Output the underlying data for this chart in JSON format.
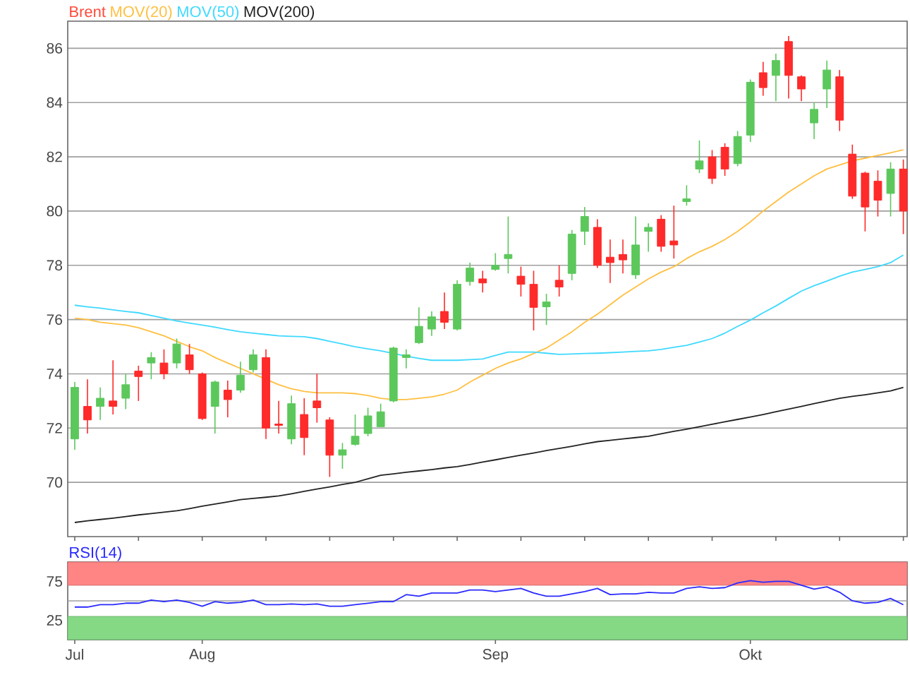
{
  "chart_data": [
    {
      "type": "candlestick",
      "grid": "y",
      "legend": "top left",
      "categories": [
        null,
        null,
        null,
        null,
        null,
        null,
        null,
        null,
        null,
        null,
        null,
        null,
        null,
        null,
        null,
        null,
        null,
        null,
        null,
        null,
        null,
        null,
        null,
        null,
        null,
        null,
        null,
        null,
        null,
        null,
        null,
        null,
        null,
        null,
        null,
        null,
        null,
        null,
        null,
        null,
        null,
        null,
        null,
        null,
        null,
        null,
        null,
        null,
        null,
        null,
        null,
        null,
        null,
        null,
        null,
        null,
        null,
        null,
        null,
        null,
        null,
        null,
        null,
        null,
        null,
        null
      ],
      "ylim": [
        68,
        87
      ],
      "yticks": [
        70,
        72,
        74,
        76,
        78,
        80,
        82,
        84,
        86
      ],
      "series": [
        {
          "name": "Brent",
          "type": "candlestick",
          "color": "#ff4a3a",
          "colors": [
            "#5cc85c",
            "#ff2a2a",
            "#5cc85c",
            "#ff2a2a",
            "#5cc85c",
            "#ff2a2a",
            "#5cc85c",
            "#ff2a2a",
            "#5cc85c",
            "#ff2a2a",
            "#ff2a2a",
            "#5cc85c",
            "#ff2a2a",
            "#5cc85c",
            "#5cc85c",
            "#ff2a2a",
            "#ff2a2a",
            "#5cc85c",
            "#ff2a2a",
            "#ff2a2a",
            "#ff2a2a",
            "#5cc85c",
            "#5cc85c",
            "#5cc85c",
            "#5cc85c",
            "#5cc85c",
            "#5cc85c",
            "#5cc85c",
            "#5cc85c",
            "#ff2a2a",
            "#5cc85c",
            "#5cc85c",
            "#ff2a2a",
            "#5cc85c",
            "#5cc85c",
            "#ff2a2a",
            "#ff2a2a",
            "#5cc85c",
            "#ff2a2a",
            "#5cc85c",
            "#5cc85c",
            "#ff2a2a",
            "#ff2a2a",
            "#ff2a2a",
            "#5cc85c",
            "#5cc85c",
            "#ff2a2a",
            "#ff2a2a",
            "#5cc85c",
            "#5cc85c",
            "#ff2a2a",
            "#ff2a2a",
            "#5cc85c",
            "#5cc85c",
            "#ff2a2a",
            "#5cc85c",
            "#ff2a2a",
            "#ff2a2a",
            "#5cc85c",
            "#5cc85c",
            "#ff2a2a",
            "#ff2a2a",
            "#ff2a2a",
            "#ff2a2a",
            "#5cc85c",
            "#ff2a2a"
          ],
          "ohlc": [
            [
              71.6,
              73.7,
              71.2,
              73.5
            ],
            [
              72.8,
              73.8,
              71.8,
              72.3
            ],
            [
              72.8,
              73.5,
              72.3,
              73.1
            ],
            [
              73.0,
              74.5,
              72.5,
              72.8
            ],
            [
              73.1,
              74.0,
              72.7,
              73.6
            ],
            [
              74.1,
              74.3,
              73.0,
              73.9
            ],
            [
              74.4,
              74.8,
              73.8,
              74.6
            ],
            [
              74.4,
              74.9,
              73.8,
              74.0
            ],
            [
              74.4,
              75.3,
              74.2,
              75.1
            ],
            [
              74.7,
              75.1,
              74.0,
              74.15
            ],
            [
              74.0,
              74.05,
              72.3,
              72.35
            ],
            [
              72.8,
              73.75,
              71.8,
              73.7
            ],
            [
              73.4,
              73.75,
              72.4,
              73.05
            ],
            [
              73.4,
              74.45,
              73.3,
              73.95
            ],
            [
              74.15,
              74.9,
              74.05,
              74.7
            ],
            [
              74.6,
              74.9,
              71.6,
              72.0
            ],
            [
              72.15,
              73.0,
              71.8,
              72.1
            ],
            [
              71.6,
              73.2,
              71.4,
              72.9
            ],
            [
              72.5,
              73.1,
              71.0,
              71.65
            ],
            [
              73.0,
              74.0,
              72.2,
              72.75
            ],
            [
              72.3,
              72.4,
              70.2,
              71.0
            ],
            [
              71.0,
              71.45,
              70.5,
              71.2
            ],
            [
              71.4,
              72.5,
              71.35,
              71.7
            ],
            [
              71.8,
              72.75,
              71.7,
              72.45
            ],
            [
              72.05,
              72.9,
              72.05,
              72.6
            ],
            [
              73.0,
              75.0,
              72.95,
              74.95
            ],
            [
              74.6,
              74.9,
              74.2,
              74.7
            ],
            [
              75.15,
              76.45,
              75.1,
              75.75
            ],
            [
              75.65,
              76.3,
              75.4,
              76.1
            ],
            [
              76.3,
              77.0,
              75.65,
              75.9
            ],
            [
              75.65,
              77.45,
              75.6,
              77.3
            ],
            [
              77.4,
              78.1,
              77.25,
              77.9
            ],
            [
              77.5,
              77.8,
              77.0,
              77.35
            ],
            [
              77.85,
              78.45,
              77.8,
              78.0
            ],
            [
              78.25,
              79.8,
              77.7,
              78.4
            ],
            [
              77.6,
              77.95,
              76.85,
              77.3
            ],
            [
              77.3,
              77.8,
              75.6,
              76.45
            ],
            [
              76.47,
              76.95,
              75.8,
              76.65
            ],
            [
              77.45,
              78.0,
              76.85,
              77.2
            ],
            [
              77.7,
              79.3,
              77.45,
              79.15
            ],
            [
              79.25,
              80.15,
              78.75,
              79.8
            ],
            [
              79.4,
              79.7,
              77.9,
              78.0
            ],
            [
              78.3,
              78.95,
              77.35,
              78.1
            ],
            [
              78.4,
              78.95,
              77.7,
              78.2
            ],
            [
              77.65,
              79.8,
              77.5,
              78.75
            ],
            [
              79.25,
              79.55,
              78.5,
              79.4
            ],
            [
              79.7,
              79.85,
              78.5,
              78.7
            ],
            [
              78.9,
              80.2,
              78.25,
              78.75
            ],
            [
              80.35,
              80.95,
              80.2,
              80.45
            ],
            [
              81.55,
              82.6,
              81.4,
              81.85
            ],
            [
              82.0,
              82.25,
              81.0,
              81.2
            ],
            [
              82.35,
              82.5,
              81.3,
              81.55
            ],
            [
              81.75,
              82.95,
              81.65,
              82.75
            ],
            [
              82.8,
              84.85,
              82.55,
              84.75
            ],
            [
              85.1,
              85.5,
              84.25,
              84.55
            ],
            [
              85.0,
              85.8,
              84.05,
              85.55
            ],
            [
              86.25,
              86.45,
              84.15,
              85.0
            ],
            [
              84.95,
              85.0,
              84.05,
              84.5
            ],
            [
              83.25,
              84.0,
              82.65,
              83.75
            ],
            [
              84.5,
              85.55,
              83.8,
              85.2
            ],
            [
              84.95,
              85.2,
              82.95,
              83.35
            ],
            [
              82.1,
              82.45,
              80.45,
              80.55
            ],
            [
              81.4,
              81.45,
              79.25,
              80.15
            ],
            [
              81.1,
              81.5,
              79.8,
              80.4
            ],
            [
              80.65,
              81.8,
              79.8,
              81.55
            ],
            [
              81.55,
              81.9,
              79.15,
              80.0
            ]
          ]
        },
        {
          "name": "MOV(20)",
          "type": "line",
          "color": "#ffbf40",
          "values": [
            76.05,
            76.0,
            75.9,
            75.85,
            75.8,
            75.7,
            75.55,
            75.4,
            75.2,
            75.0,
            74.85,
            74.6,
            74.4,
            74.2,
            74.0,
            73.8,
            73.6,
            73.45,
            73.35,
            73.3,
            73.3,
            73.3,
            73.27,
            73.2,
            73.1,
            73.05,
            73.05,
            73.1,
            73.15,
            73.25,
            73.4,
            73.7,
            73.95,
            74.2,
            74.4,
            74.55,
            74.75,
            74.95,
            75.25,
            75.55,
            75.9,
            76.2,
            76.55,
            76.9,
            77.2,
            77.5,
            77.75,
            77.95,
            78.25,
            78.5,
            78.7,
            78.95,
            79.25,
            79.6,
            80.0,
            80.35,
            80.7,
            81.0,
            81.3,
            81.55,
            81.7,
            81.85,
            81.95,
            82.05,
            82.15,
            82.26
          ]
        },
        {
          "name": "MOV(50)",
          "type": "line",
          "color": "#3fd9ff",
          "values": [
            76.53,
            76.47,
            76.42,
            76.36,
            76.3,
            76.25,
            76.15,
            76.05,
            75.95,
            75.87,
            75.8,
            75.72,
            75.63,
            75.55,
            75.5,
            75.45,
            75.4,
            75.38,
            75.37,
            75.3,
            75.2,
            75.1,
            75.0,
            74.92,
            74.85,
            74.75,
            74.65,
            74.57,
            74.5,
            74.5,
            74.5,
            74.52,
            74.55,
            74.68,
            74.8,
            74.8,
            74.8,
            74.76,
            74.72,
            74.73,
            74.75,
            74.76,
            74.78,
            74.8,
            74.83,
            74.85,
            74.9,
            74.98,
            75.05,
            75.17,
            75.3,
            75.5,
            75.75,
            75.98,
            76.25,
            76.5,
            76.78,
            77.05,
            77.25,
            77.42,
            77.6,
            77.75,
            77.85,
            77.95,
            78.1,
            78.38
          ]
        },
        {
          "name": "MOV(200)",
          "type": "line",
          "color": "#222222",
          "values": [
            68.52,
            68.58,
            68.63,
            68.68,
            68.74,
            68.8,
            68.85,
            68.9,
            68.95,
            69.03,
            69.12,
            69.2,
            69.28,
            69.36,
            69.41,
            69.45,
            69.5,
            69.58,
            69.67,
            69.75,
            69.83,
            69.92,
            70.0,
            70.13,
            70.26,
            70.31,
            70.37,
            70.42,
            70.47,
            70.53,
            70.58,
            70.66,
            70.75,
            70.83,
            70.92,
            71.0,
            71.08,
            71.17,
            71.25,
            71.33,
            71.42,
            71.5,
            71.55,
            71.6,
            71.65,
            71.7,
            71.79,
            71.88,
            71.96,
            72.05,
            72.14,
            72.23,
            72.32,
            72.41,
            72.5,
            72.6,
            72.7,
            72.8,
            72.9,
            73.0,
            73.1,
            73.17,
            73.23,
            73.3,
            73.37,
            73.5
          ]
        }
      ]
    },
    {
      "type": "line",
      "legend": "top left",
      "categories": [
        "Jul",
        null,
        null,
        null,
        null,
        null,
        null,
        null,
        null,
        null,
        "Aug",
        null,
        null,
        null,
        null,
        null,
        null,
        null,
        null,
        null,
        null,
        null,
        null,
        null,
        null,
        null,
        null,
        null,
        null,
        null,
        null,
        null,
        null,
        "Sep",
        null,
        null,
        null,
        null,
        null,
        null,
        null,
        null,
        null,
        null,
        null,
        null,
        null,
        null,
        null,
        null,
        null,
        null,
        null,
        "Okt",
        null,
        null,
        null,
        null,
        null,
        null,
        null,
        null,
        null,
        null,
        null,
        null
      ],
      "ylim": [
        0,
        100
      ],
      "yticks": [
        25,
        75
      ],
      "bands": [
        {
          "axis": "y",
          "from": 70,
          "to": 100,
          "color": "#ff8585"
        },
        {
          "axis": "y",
          "from": 0,
          "to": 30,
          "color": "#85d985"
        }
      ],
      "ref_lines": [
        {
          "axis": "y",
          "value": 50,
          "color": "#a0a0a0"
        }
      ],
      "series": [
        {
          "name": "RSI(14)",
          "color": "#2a2aff",
          "values": [
            42,
            42,
            45,
            45,
            47,
            47,
            51,
            49,
            51,
            48,
            43,
            49,
            47,
            48,
            51,
            45,
            45,
            46,
            45,
            46,
            43,
            43,
            45,
            47,
            49,
            49,
            58,
            56,
            60,
            60,
            60,
            64,
            64,
            62,
            64,
            66,
            60,
            56,
            56,
            59,
            62,
            66,
            58,
            59,
            59,
            61,
            60,
            60,
            66,
            68,
            66,
            67,
            73,
            76,
            74,
            75,
            75,
            70,
            65,
            68,
            61,
            50,
            47,
            48,
            53,
            45
          ]
        }
      ]
    }
  ]
}
